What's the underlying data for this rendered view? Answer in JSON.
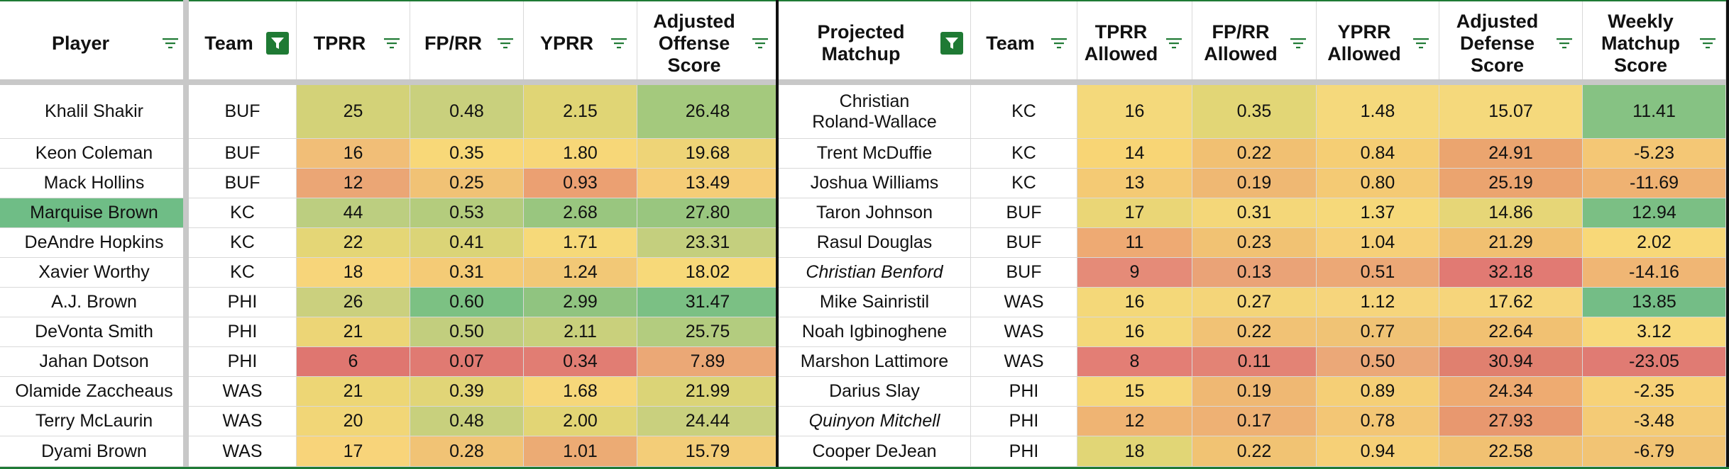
{
  "columns": [
    {
      "key": "player",
      "label": "Player",
      "filter": "filter-icon"
    },
    {
      "key": "team",
      "label": "Team",
      "filter": "filter-active-icon"
    },
    {
      "key": "tprr",
      "label": "TPRR",
      "filter": "filter-icon"
    },
    {
      "key": "fprr",
      "label": "FP/RR",
      "filter": "filter-icon"
    },
    {
      "key": "yprr",
      "label": "YPRR",
      "filter": "filter-icon"
    },
    {
      "key": "aos",
      "label": "Adjusted\nOffense\nScore",
      "filter": "filter-icon"
    },
    {
      "key": "matchup",
      "label": "Projected\nMatchup",
      "filter": "filter-active-icon"
    },
    {
      "key": "dteam",
      "label": "Team",
      "filter": "filter-icon"
    },
    {
      "key": "tprra",
      "label": "TPRR\nAllowed",
      "filter": "filter-icon"
    },
    {
      "key": "fprra",
      "label": "FP/RR\nAllowed",
      "filter": "filter-icon"
    },
    {
      "key": "yprra",
      "label": "YPRR\nAllowed",
      "filter": "filter-icon"
    },
    {
      "key": "ads",
      "label": "Adjusted\nDefense\nScore",
      "filter": "filter-icon"
    },
    {
      "key": "wms",
      "label": "Weekly\nMatchup\nScore",
      "filter": "filter-icon"
    }
  ],
  "rows": [
    {
      "cells": [
        "Khalil Shakir",
        "BUF",
        "25",
        "0.48",
        "2.15",
        "26.48",
        "Christian\nRoland-Wallace",
        "KC",
        "16",
        "0.35",
        "1.48",
        "15.07",
        "11.41"
      ],
      "colors": [
        "#ffffff",
        "#ffffff",
        "#d3d278",
        "#c9d07d",
        "#e0d575",
        "#a4c97d",
        "#ffffff",
        "#ffffff",
        "#f4d97b",
        "#e2d676",
        "#f5d97c",
        "#f5d97c",
        "#86c283"
      ]
    },
    {
      "cells": [
        "Keon Coleman",
        "BUF",
        "16",
        "0.35",
        "1.80",
        "19.68",
        "Trent McDuffie",
        "KC",
        "14",
        "0.22",
        "0.84",
        "24.91",
        "-5.23"
      ],
      "colors": [
        "#ffffff",
        "#ffffff",
        "#f1be77",
        "#f8d878",
        "#f7d778",
        "#eed477",
        "#ffffff",
        "#ffffff",
        "#f8d575",
        "#f1c072",
        "#f5ce74",
        "#eba56f",
        "#f4c775"
      ]
    },
    {
      "cells": [
        "Mack Hollins",
        "BUF",
        "12",
        "0.25",
        "0.93",
        "13.49",
        "Joshua Williams",
        "KC",
        "13",
        "0.19",
        "0.80",
        "25.19",
        "-11.69"
      ],
      "colors": [
        "#ffffff",
        "#ffffff",
        "#eba675",
        "#f1c275",
        "#eba072",
        "#f5cd77",
        "#ffffff",
        "#ffffff",
        "#f4ca74",
        "#efb873",
        "#f4ca74",
        "#eba46f",
        "#efb272"
      ]
    },
    {
      "cells": [
        "Marquise Brown",
        "KC",
        "44",
        "0.53",
        "2.68",
        "27.80",
        "Taron Johnson",
        "BUF",
        "17",
        "0.31",
        "1.37",
        "14.86",
        "12.94"
      ],
      "colors": [
        "#6fbd86",
        "#ffffff",
        "#bcce80",
        "#b4cc7d",
        "#99c67f",
        "#99c67f",
        "#ffffff",
        "#ffffff",
        "#ead676",
        "#f4d779",
        "#f6d97a",
        "#e6d677",
        "#7bbf84"
      ]
    },
    {
      "cells": [
        "DeAndre Hopkins",
        "KC",
        "22",
        "0.41",
        "1.71",
        "23.31",
        "Rasul Douglas",
        "BUF",
        "11",
        "0.23",
        "1.04",
        "21.29",
        "2.02"
      ],
      "colors": [
        "#ffffff",
        "#ffffff",
        "#e4d676",
        "#dbd477",
        "#f6d979",
        "#c4cf7e",
        "#ffffff",
        "#ffffff",
        "#eeaa73",
        "#f1c273",
        "#f6d078",
        "#f1c071",
        "#f8d878"
      ]
    },
    {
      "cells": [
        "Xavier Worthy",
        "KC",
        "18",
        "0.31",
        "1.24",
        "18.02",
        "Christian Benford",
        "BUF",
        "9",
        "0.13",
        "0.51",
        "32.18",
        "-14.16"
      ],
      "colors": [
        "#ffffff",
        "#ffffff",
        "#f7d57a",
        "#f4cb76",
        "#f2c876",
        "#f7d979",
        "#ffffff",
        "#ffffff",
        "#e58b78",
        "#eaa377",
        "#eca876",
        "#e17a73",
        "#f0b674"
      ]
    },
    {
      "cells": [
        "A.J. Brown",
        "PHI",
        "26",
        "0.60",
        "2.99",
        "31.47",
        "Mike Sainristil",
        "WAS",
        "16",
        "0.27",
        "1.12",
        "17.62",
        "13.85"
      ],
      "colors": [
        "#ffffff",
        "#ffffff",
        "#cbd07e",
        "#7cc183",
        "#90c480",
        "#7bc084",
        "#ffffff",
        "#ffffff",
        "#f4d879",
        "#f4d579",
        "#f6d57c",
        "#f6d57b",
        "#74bd86"
      ]
    },
    {
      "cells": [
        "DeVonta Smith",
        "PHI",
        "21",
        "0.50",
        "2.11",
        "25.75",
        "Noah Igbinoghene",
        "WAS",
        "16",
        "0.22",
        "0.77",
        "22.64",
        "3.12"
      ],
      "colors": [
        "#ffffff",
        "#ffffff",
        "#ecd576",
        "#c2ce7e",
        "#c9d07c",
        "#b3cc7f",
        "#ffffff",
        "#ffffff",
        "#f4d879",
        "#f1c275",
        "#f0c375",
        "#f1c172",
        "#f8d97b"
      ]
    },
    {
      "cells": [
        "Jahan Dotson",
        "PHI",
        "6",
        "0.07",
        "0.34",
        "7.89",
        "Marshon Lattimore",
        "WAS",
        "8",
        "0.11",
        "0.50",
        "30.94",
        "-23.05"
      ],
      "colors": [
        "#ffffff",
        "#ffffff",
        "#df7670",
        "#e07a72",
        "#e17d73",
        "#eba876",
        "#ffffff",
        "#ffffff",
        "#e37e75",
        "#e38375",
        "#eba878",
        "#e0806f",
        "#e07b73"
      ]
    },
    {
      "cells": [
        "Olamide Zaccheaus",
        "WAS",
        "21",
        "0.39",
        "1.68",
        "21.99",
        "Darius Slay",
        "PHI",
        "15",
        "0.19",
        "0.89",
        "24.34",
        "-2.35"
      ],
      "colors": [
        "#ffffff",
        "#ffffff",
        "#edd675",
        "#e1d577",
        "#f6d77a",
        "#dbd477",
        "#ffffff",
        "#ffffff",
        "#f6d879",
        "#efb873",
        "#f5cf76",
        "#eeab71",
        "#f7d278"
      ]
    },
    {
      "cells": [
        "Terry McLaurin",
        "WAS",
        "20",
        "0.48",
        "2.00",
        "24.44",
        "Quinyon Mitchell",
        "PHI",
        "12",
        "0.17",
        "0.78",
        "27.93",
        "-3.48"
      ],
      "colors": [
        "#ffffff",
        "#ffffff",
        "#f1d677",
        "#c8d07d",
        "#e2d575",
        "#c9d07e",
        "#ffffff",
        "#ffffff",
        "#efb473",
        "#eeb174",
        "#f3c675",
        "#e8986f",
        "#f4cb76"
      ]
    },
    {
      "cells": [
        "Dyami Brown",
        "WAS",
        "17",
        "0.28",
        "1.01",
        "15.79",
        "Cooper DeJean",
        "PHI",
        "18",
        "0.22",
        "0.94",
        "22.58",
        "-6.79"
      ],
      "colors": [
        "#ffffff",
        "#ffffff",
        "#f8d47a",
        "#f1c375",
        "#ecab74",
        "#f3cd78",
        "#ffffff",
        "#ffffff",
        "#e1d676",
        "#f1c373",
        "#f6d077",
        "#f1c172",
        "#f2c474"
      ]
    }
  ],
  "italic_names": [
    "Christian Benford",
    "Quinyon Mitchell"
  ]
}
